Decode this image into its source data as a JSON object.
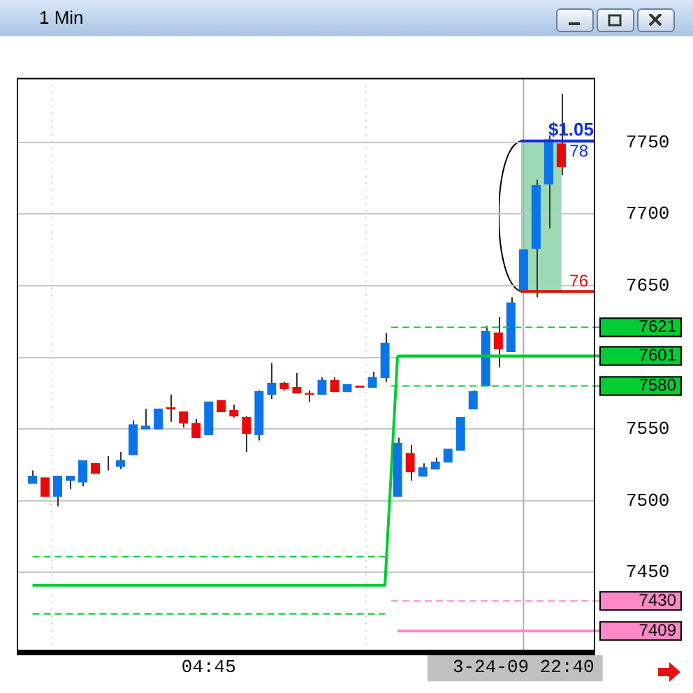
{
  "chart_data": {
    "type": "candlestick",
    "title": "1 Min",
    "categories": [
      null,
      null,
      null,
      null,
      null,
      null,
      null,
      null,
      null,
      null,
      null,
      null,
      null,
      null,
      "04:45",
      null,
      null,
      null,
      null,
      null,
      null,
      null,
      null,
      null,
      null,
      null,
      null,
      null,
      null,
      null,
      null,
      null,
      null,
      null,
      null,
      null,
      null,
      null,
      null,
      "3-24-09 22:40",
      null,
      null,
      null
    ],
    "ohlc": [
      [
        7512,
        7521,
        7512,
        7517
      ],
      [
        7516,
        7516,
        7503,
        7503
      ],
      [
        7503,
        7517,
        7496,
        7517
      ],
      [
        7514,
        7517,
        7508,
        7517
      ],
      [
        7513,
        7528,
        7510,
        7528
      ],
      [
        7526,
        7526,
        7519,
        7519
      ],
      [
        7524,
        7531,
        7521,
        7524
      ],
      [
        7524,
        7534,
        7522,
        7528
      ],
      [
        7532,
        7556,
        7532,
        7553
      ],
      [
        7550,
        7564,
        7550,
        7552
      ],
      [
        7550,
        7564,
        7550,
        7564
      ],
      [
        7565,
        7574,
        7555,
        7564
      ],
      [
        7562,
        7562,
        7551,
        7554
      ],
      [
        7554,
        7557,
        7544,
        7544
      ],
      [
        7546,
        7569,
        7546,
        7569
      ],
      [
        7570,
        7570,
        7562,
        7562
      ],
      [
        7563,
        7567,
        7558,
        7559
      ],
      [
        7558,
        7559,
        7534,
        7547
      ],
      [
        7546,
        7577,
        7542,
        7576
      ],
      [
        7574,
        7596,
        7571,
        7582
      ],
      [
        7582,
        7583,
        7577,
        7578
      ],
      [
        7579,
        7589,
        7575,
        7575
      ],
      [
        7575,
        7577,
        7569,
        7574
      ],
      [
        7574,
        7586,
        7574,
        7584
      ],
      [
        7584,
        7586,
        7576,
        7576
      ],
      [
        7576,
        7581,
        7576,
        7581
      ],
      [
        7580,
        7580,
        7579,
        7579
      ],
      [
        7579,
        7590,
        7579,
        7586
      ],
      [
        7586,
        7617,
        7583,
        7610
      ],
      [
        7503,
        7544,
        7503,
        7540
      ],
      [
        7533,
        7539,
        7514,
        7520
      ],
      [
        7517,
        7526,
        7517,
        7523
      ],
      [
        7522,
        7530,
        7522,
        7527
      ],
      [
        7527,
        7536,
        7527,
        7536
      ],
      [
        7535,
        7558,
        7535,
        7558
      ],
      [
        7564,
        7577,
        7564,
        7576
      ],
      [
        7580,
        7622,
        7580,
        7618
      ],
      [
        7617,
        7628,
        7593,
        7606
      ],
      [
        7604,
        7642,
        7604,
        7638
      ],
      [
        7647,
        7675,
        7647,
        7675
      ],
      [
        7676,
        7724,
        7642,
        7720
      ],
      [
        7721,
        7755,
        7690,
        7752
      ],
      [
        7749,
        7784,
        7727,
        7733
      ]
    ],
    "colors": [
      "#0a74e8",
      "#e80a0a",
      "#0a74e8",
      "#0a74e8",
      "#0a74e8",
      "#e80a0a",
      "#0a74e8",
      "#0a74e8",
      "#0a74e8",
      "#0a74e8",
      "#0a74e8",
      "#e80a0a",
      "#e80a0a",
      "#e80a0a",
      "#0a74e8",
      "#e80a0a",
      "#e80a0a",
      "#e80a0a",
      "#0a74e8",
      "#0a74e8",
      "#e80a0a",
      "#e80a0a",
      "#e80a0a",
      "#0a74e8",
      "#e80a0a",
      "#0a74e8",
      "#e80a0a",
      "#0a74e8",
      "#0a74e8",
      "#0a74e8",
      "#e80a0a",
      "#0a74e8",
      "#0a74e8",
      "#0a74e8",
      "#0a74e8",
      "#0a74e8",
      "#0a74e8",
      "#e80a0a",
      "#0a74e8",
      "#0a74e8",
      "#0a74e8",
      "#0a74e8",
      "#e80a0a"
    ],
    "series": [
      {
        "type": "line",
        "color": "#00cc33",
        "line_style": "solid",
        "values": [
          7441,
          7441,
          7441,
          7441,
          7441,
          7441,
          7441,
          7441,
          7441,
          7441,
          7441,
          7441,
          7441,
          7441,
          7441,
          7441,
          7441,
          7441,
          7441,
          7441,
          7441,
          7441,
          7441,
          7441,
          7441,
          7441,
          7441,
          7441,
          7441,
          7601,
          null,
          null,
          null,
          null,
          null,
          null,
          null,
          null,
          null,
          null,
          null,
          null,
          null
        ]
      },
      {
        "type": "line",
        "color": "#00cc33",
        "line_style": "dashed",
        "values": [
          7461,
          7461,
          7461,
          7461,
          7461,
          7461,
          7461,
          7461,
          7461,
          7461,
          7461,
          7461,
          7461,
          7461,
          7461,
          7461,
          7461,
          7461,
          7461,
          7461,
          7461,
          7461,
          7461,
          7461,
          7461,
          7461,
          7461,
          7461,
          7461,
          null,
          null,
          null,
          null,
          null,
          null,
          null,
          null,
          null,
          null,
          null,
          null,
          null,
          null
        ]
      },
      {
        "type": "line",
        "color": "#00cc33",
        "line_style": "dashed",
        "values": [
          7421,
          7421,
          7421,
          7421,
          7421,
          7421,
          7421,
          7421,
          7421,
          7421,
          7421,
          7421,
          7421,
          7421,
          7421,
          7421,
          7421,
          7421,
          7421,
          7421,
          7421,
          7421,
          7421,
          7421,
          7421,
          7421,
          7421,
          7421,
          7421,
          null,
          null,
          null,
          null,
          null,
          null,
          null,
          null,
          null,
          null,
          null,
          null,
          null,
          null
        ]
      }
    ],
    "ylim": [
      7395,
      7795
    ],
    "yticks": [
      7450,
      7500,
      7550,
      {
        "value": 7600,
        "label": null
      },
      7650,
      7700,
      7750
    ],
    "grid": true,
    "ref_lines": [
      {
        "axis": "x",
        "value": "3-24-09 22:40",
        "color": "#b0b0b0"
      },
      {
        "axis": "y",
        "value": 7751,
        "color": "#1030e0"
      },
      {
        "axis": "y",
        "value": 7646,
        "color": "#e01010"
      },
      {
        "axis": "y",
        "value": 7621,
        "label": "7621",
        "color": "#00cc33",
        "line_style": "dashed"
      },
      {
        "axis": "y",
        "value": 7601,
        "label": "7601",
        "color": "#00cc33",
        "line_style": "solid"
      },
      {
        "axis": "y",
        "value": 7580,
        "label": "7580",
        "color": "#00cc33",
        "line_style": "dashed"
      },
      {
        "axis": "y",
        "value": 7430,
        "label": "7430",
        "color": "#ff88c8",
        "line_style": "dashed"
      },
      {
        "axis": "y",
        "value": 7409,
        "label": "7409",
        "color": "#ff88c8",
        "line_style": "solid"
      }
    ],
    "annotations": [
      "$1.05",
      {
        "text": "78",
        "y": 7751
      },
      {
        "text": "76",
        "y": 7646
      }
    ]
  }
}
